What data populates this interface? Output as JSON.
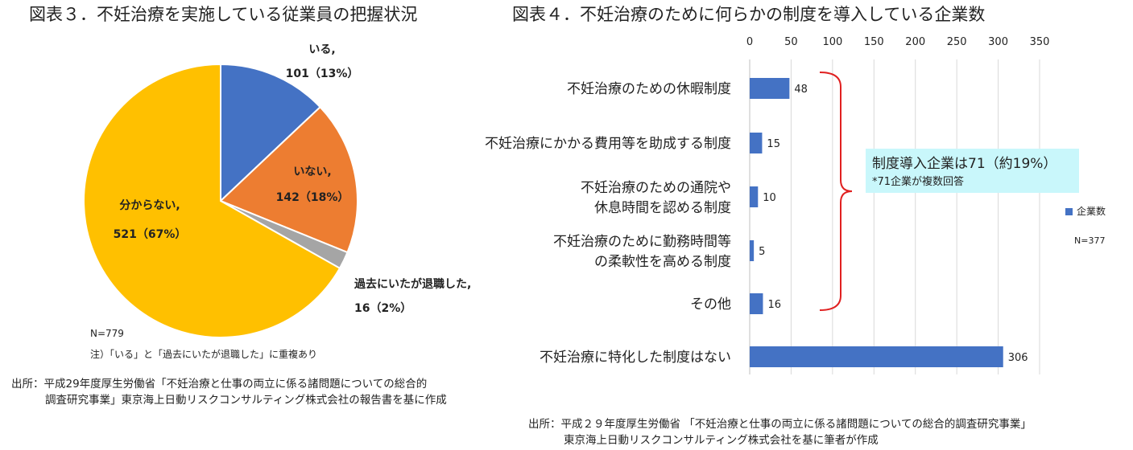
{
  "fig3": {
    "title": "図表３．不妊治療を実施している従業員の把握状況",
    "n_label": "N=779",
    "note": "注）「いる」と「過去にいたが退職した」に重複あり",
    "source_line1": "出所：平成29年度厚生労働省「不妊治療と仕事の両立に係る諸問題についての総合的",
    "source_line2": "調査研究事業」東京海上日動リスクコンサルティング株式会社の報告書を基に作成"
  },
  "fig4": {
    "title": "図表４．不妊治療のために何らかの制度を導入している企業数",
    "callout_main": "制度導入企業は71（約19%）",
    "callout_sub": "*71企業が複数回答",
    "legend_label": "企業数",
    "n_label": "N=377",
    "source_line1": "出所：平成２９年度厚生労働省 「不妊治療と仕事の両立に係る諸問題についての総合的調査研究事業」",
    "source_line2": "東京海上日動リスクコンサルティング株式会社を基に筆者が作成"
  },
  "colors": {
    "pie_iru": "#4472c4",
    "pie_inai": "#ed7d31",
    "pie_taishoku": "#a5a5a5",
    "pie_wakaranai": "#ffc000",
    "bar": "#4472c4",
    "bracket": "#e02020",
    "callout_bg": "#c9f7fb"
  },
  "chart_data": [
    {
      "type": "pie",
      "slices": [
        {
          "name": "いる,",
          "value": 101,
          "label": "101（13%）",
          "color_key": "pie_iru"
        },
        {
          "name": "いない,",
          "value": 142,
          "label": "142（18%）",
          "color_key": "pie_inai"
        },
        {
          "name": "過去にいたが退職した,",
          "value": 16,
          "label": "16（2%）",
          "color_key": "pie_taishoku"
        },
        {
          "name": "分からない,",
          "value": 521,
          "label": "521（67%）",
          "color_key": "pie_wakaranai"
        }
      ]
    },
    {
      "type": "bar",
      "orientation": "horizontal",
      "categories": [
        "不妊治療のための休暇制度",
        "不妊治療にかかる費用等を助成する制度",
        "不妊治療のための通院や休息時間を認める制度",
        "不妊治療のために勤務時間等の柔軟性を高める制度",
        "その他",
        "不妊治療に特化した制度はない"
      ],
      "category_lines": [
        [
          "不妊治療のための休暇制度"
        ],
        [
          "不妊治療にかかる費用等を助成する制度"
        ],
        [
          "不妊治療のための通院や",
          "休息時間を認める制度"
        ],
        [
          "不妊治療のために勤務時間等",
          "の柔軟性を高める制度"
        ],
        [
          "その他"
        ],
        [
          "不妊治療に特化した制度はない"
        ]
      ],
      "series": [
        {
          "name": "企業数",
          "values": [
            48,
            15,
            10,
            5,
            16,
            306
          ]
        }
      ],
      "xlim": [
        0,
        350
      ],
      "xticks": [
        0,
        50,
        100,
        150,
        200,
        250,
        300,
        350
      ],
      "grid": true,
      "legend_position": "right"
    }
  ]
}
